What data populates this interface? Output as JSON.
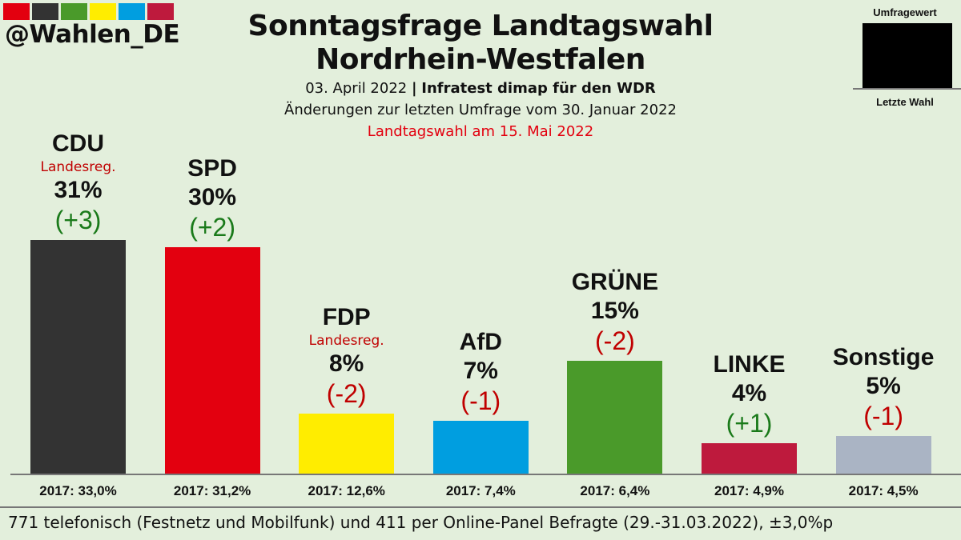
{
  "brand": {
    "handle": "@Wahlen_DE",
    "colors": [
      "#e3000f",
      "#333333",
      "#4a9a2a",
      "#ffed00",
      "#009ee0",
      "#be1a3d"
    ]
  },
  "header": {
    "title_line1": "Sonntagsfrage Landtagswahl",
    "title_line2": "Nordrhein-Westfalen",
    "date": "03. April 2022",
    "separator": "|",
    "institute": "Infratest dimap für den WDR",
    "changes_note": "Änderungen zur letzten Umfrage vom 30. Januar 2022",
    "election_note": "Landtagswahl am 15. Mai 2022",
    "election_note_color": "#e3000f"
  },
  "legend": {
    "top": "Umfragewert",
    "bottom": "Letzte Wahl"
  },
  "chart_data": {
    "type": "bar",
    "title": "Sonntagsfrage Landtagswahl Nordrhein-Westfalen",
    "ylim": [
      0,
      33
    ],
    "categories": [
      "CDU",
      "SPD",
      "FDP",
      "AfD",
      "GRÜNE",
      "LINKE",
      "Sonstige"
    ],
    "values": [
      31,
      30,
      8,
      7,
      15,
      4,
      5
    ],
    "value_labels": [
      "31%",
      "30%",
      "8%",
      "7%",
      "15%",
      "4%",
      "5%"
    ],
    "changes": [
      3,
      2,
      -2,
      -1,
      -2,
      1,
      -1
    ],
    "change_labels": [
      "(+3)",
      "(+2)",
      "(-2)",
      "(-1)",
      "(-2)",
      "(+1)",
      "(-1)"
    ],
    "government": [
      "Landesreg.",
      "",
      "Landesreg.",
      "",
      "",
      "",
      ""
    ],
    "previous_labels": [
      "2017: 33,0%",
      "2017: 31,2%",
      "2017: 12,6%",
      "2017: 7,4%",
      "2017: 6,4%",
      "2017: 4,9%",
      "2017: 4,5%"
    ],
    "previous_values": [
      33.0,
      31.2,
      12.6,
      7.4,
      6.4,
      4.9,
      4.5
    ],
    "colors": [
      "#333333",
      "#e3000f",
      "#ffed00",
      "#009ee0",
      "#4a9a2a",
      "#be1a3d",
      "#aab4c4"
    ],
    "positive_color": "#1a7a1a",
    "negative_color": "#c00000"
  },
  "footer": "771 telefonisch (Festnetz und Mobilfunk) und 411 per Online-Panel Befragte (29.-31.03.2022), ±3,0%p"
}
